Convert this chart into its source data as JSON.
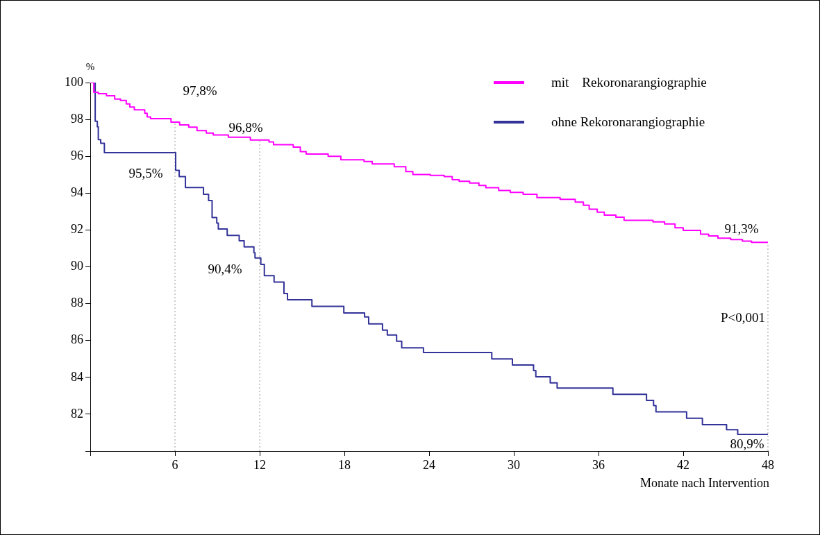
{
  "chart_data": {
    "type": "step",
    "ylabel": "%",
    "xlabel": "Monate nach Intervention",
    "xlim": [
      0,
      48
    ],
    "xticks": [
      {
        "value": 0,
        "label": null
      },
      6,
      12,
      18,
      24,
      30,
      36,
      42,
      48
    ],
    "ylim": [
      80,
      100
    ],
    "yticks": [
      {
        "value": 80,
        "label": null
      },
      82,
      84,
      86,
      88,
      90,
      92,
      94,
      96,
      98,
      100
    ],
    "grid": false,
    "legend": "top right",
    "marker": "none",
    "line_style": "solid",
    "series": [
      {
        "name": "mit    Rekoronarangiographie",
        "color": "#ff00ff",
        "x": [
          0,
          0.25,
          0.57,
          1.15,
          1.73,
          2.14,
          2.55,
          2.8,
          3.12,
          3.86,
          4.03,
          4.27,
          5.72,
          6.33,
          6.98,
          7.56,
          8.22,
          8.71,
          9.78,
          11.34,
          12.66,
          12.98,
          14.38,
          14.88,
          15.29,
          16.85,
          17.75,
          19.39,
          19.97,
          21.53,
          22.35,
          22.85,
          24.08,
          25.07,
          25.64,
          26.13,
          26.87,
          27.53,
          28.02,
          28.93,
          29.75,
          30.66,
          31.64,
          33.28,
          34.35,
          34.93,
          35.34,
          35.91,
          36.41,
          37.23,
          37.81,
          39.86,
          40.68,
          41.42,
          42.0,
          43.23,
          43.8,
          44.46,
          45.36,
          46.19,
          46.84,
          48
        ],
        "values": [
          100,
          99.47,
          99.4,
          99.28,
          99.11,
          99.03,
          98.84,
          98.67,
          98.52,
          98.33,
          98.14,
          98.04,
          97.85,
          97.7,
          97.58,
          97.39,
          97.26,
          97.16,
          97.03,
          96.88,
          96.78,
          96.63,
          96.5,
          96.25,
          96.12,
          96.0,
          95.81,
          95.72,
          95.58,
          95.43,
          95.17,
          95.01,
          94.96,
          94.9,
          94.73,
          94.64,
          94.55,
          94.42,
          94.29,
          94.14,
          94.04,
          93.94,
          93.76,
          93.66,
          93.51,
          93.34,
          93.13,
          92.97,
          92.81,
          92.69,
          92.52,
          92.44,
          92.33,
          92.12,
          91.98,
          91.77,
          91.68,
          91.55,
          91.48,
          91.39,
          91.33,
          91.3
        ]
      },
      {
        "name": "ohne Rekoronarangiographie",
        "color": "#333399",
        "x": [
          0,
          0.35,
          0.5,
          0.57,
          0.74,
          1.0,
          6.0,
          6.05,
          6.3,
          6.74,
          8.02,
          8.38,
          8.63,
          8.96,
          9.07,
          9.7,
          10.55,
          10.9,
          11.59,
          11.67,
          12.08,
          12.33,
          13.02,
          13.72,
          13.97,
          15.7,
          17.96,
          19.43,
          19.72,
          20.7,
          21.04,
          21.7,
          22.06,
          23.6,
          28.44,
          29.9,
          31.4,
          31.56,
          32.58,
          33.07,
          37.02,
          39.4,
          39.9,
          40.07,
          42.24,
          43.36,
          45.07,
          45.86,
          48
        ],
        "values": [
          100,
          97.9,
          97.6,
          96.9,
          96.7,
          96.2,
          96.2,
          95.24,
          94.9,
          94.3,
          93.94,
          93.6,
          92.67,
          92.37,
          92.05,
          91.7,
          91.41,
          91.08,
          90.76,
          90.48,
          90.13,
          89.52,
          89.17,
          88.55,
          88.21,
          87.85,
          87.5,
          87.28,
          86.9,
          86.56,
          86.3,
          85.96,
          85.6,
          85.35,
          85.0,
          84.67,
          84.37,
          84.03,
          83.7,
          83.42,
          83.08,
          82.75,
          82.47,
          82.13,
          81.78,
          81.43,
          81.16,
          80.9,
          80.9
        ]
      }
    ],
    "ref_lines": [
      {
        "axis": "x",
        "value": 6,
        "color": "#999999",
        "line_style": "dotted"
      },
      {
        "axis": "x",
        "value": 12,
        "color": "#999999",
        "line_style": "dotted"
      },
      {
        "axis": "x",
        "value": 48,
        "color": "#999999",
        "line_style": "dotted"
      }
    ],
    "annotations": [
      {
        "text": "97,8%",
        "x": 6,
        "y": 97.8
      },
      {
        "text": "96,8%",
        "x": 12,
        "y": 96.8
      },
      {
        "text": "95,5%",
        "x": 6,
        "y": 95.5
      },
      {
        "text": "90,4%",
        "x": 12,
        "y": 90.4
      },
      {
        "text": "91,3%",
        "x": 48,
        "y": 91.3
      },
      {
        "text": "80,9%",
        "x": 48,
        "y": 80.9
      },
      "P<0,001"
    ]
  }
}
